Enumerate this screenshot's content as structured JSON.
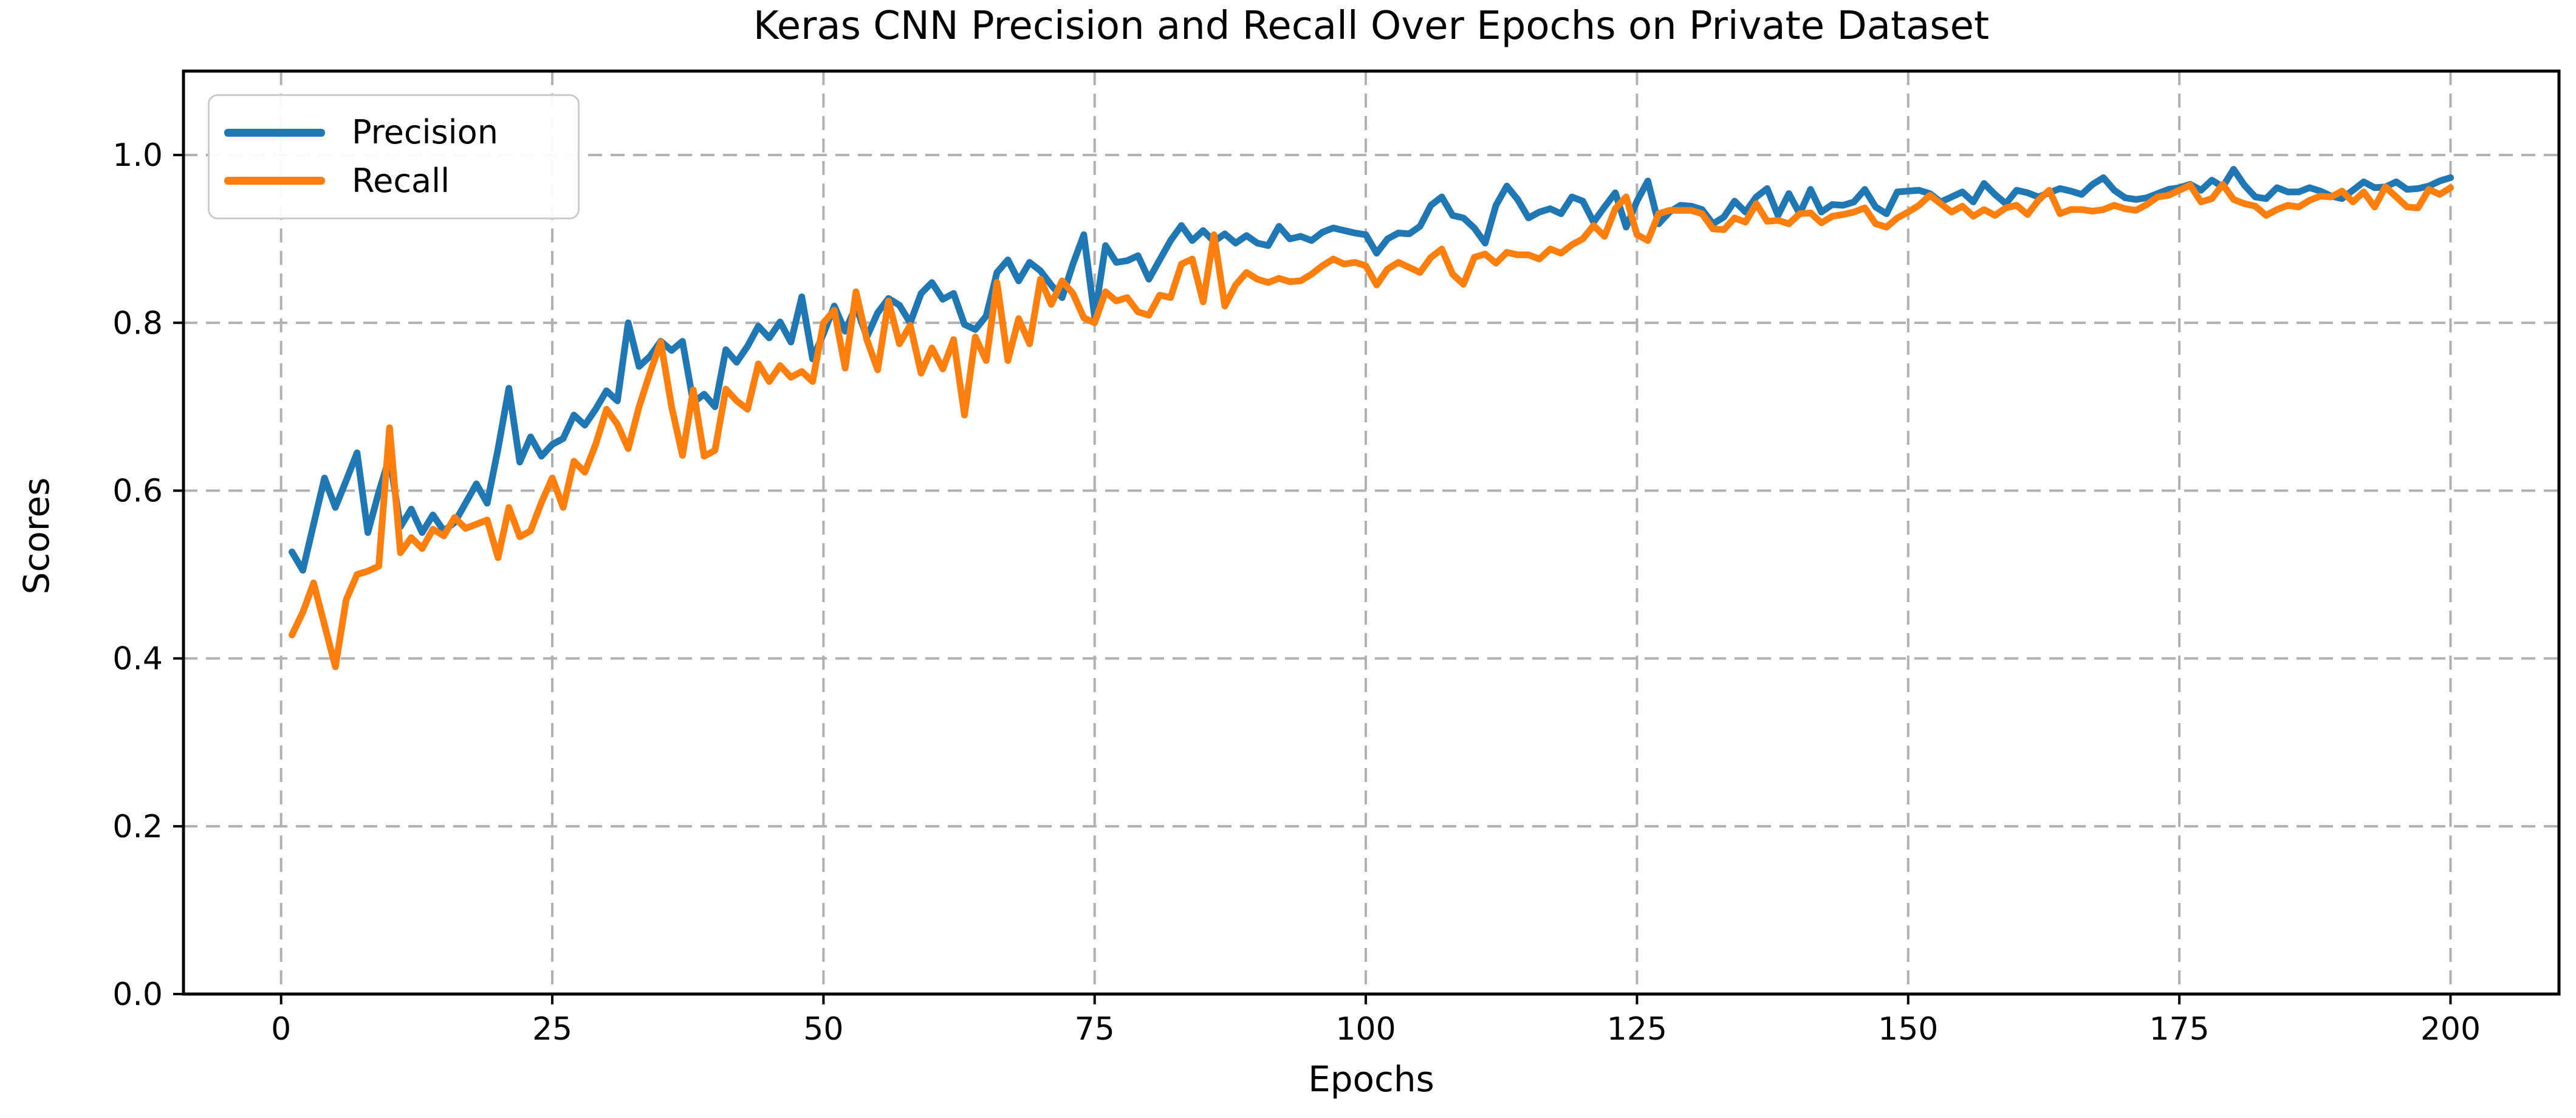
{
  "chart_data": {
    "type": "line",
    "title": "Keras CNN Precision and Recall Over Epochs on Private Dataset",
    "xlabel": "Epochs",
    "ylabel": "Scores",
    "xlim": [
      -9,
      210
    ],
    "ylim": [
      0,
      1.1
    ],
    "x_ticks": [
      0,
      25,
      50,
      75,
      100,
      125,
      150,
      175,
      200
    ],
    "x_tick_labels": [
      "0",
      "25",
      "50",
      "75",
      "100",
      "125",
      "150",
      "175",
      "200"
    ],
    "y_ticks": [
      0.0,
      0.2,
      0.4,
      0.6,
      0.8,
      1.0
    ],
    "y_tick_labels": [
      "0.0",
      "0.2",
      "0.4",
      "0.6",
      "0.8",
      "1.0"
    ],
    "grid": true,
    "grid_style": "dashed",
    "legend_position": "upper left",
    "colors": {
      "precision": "#1f77b4",
      "recall": "#ff7f0e",
      "grid": "#b0b0b0",
      "spine": "#000000"
    },
    "epochs": {
      "from": 1,
      "to": 200,
      "step": 1
    },
    "series": [
      {
        "name": "Precision",
        "color_key": "precision",
        "values": [
          0.527,
          0.505,
          0.56,
          0.615,
          0.58,
          0.612,
          0.645,
          0.55,
          0.598,
          0.64,
          0.557,
          0.578,
          0.55,
          0.571,
          0.552,
          0.562,
          0.585,
          0.608,
          0.585,
          0.65,
          0.722,
          0.634,
          0.664,
          0.641,
          0.655,
          0.662,
          0.69,
          0.678,
          0.697,
          0.719,
          0.707,
          0.8,
          0.748,
          0.76,
          0.778,
          0.767,
          0.778,
          0.705,
          0.715,
          0.7,
          0.768,
          0.753,
          0.772,
          0.796,
          0.782,
          0.801,
          0.777,
          0.831,
          0.757,
          0.787,
          0.82,
          0.79,
          0.82,
          0.783,
          0.812,
          0.829,
          0.821,
          0.8,
          0.835,
          0.848,
          0.828,
          0.835,
          0.798,
          0.792,
          0.808,
          0.86,
          0.875,
          0.85,
          0.872,
          0.862,
          0.845,
          0.83,
          0.87,
          0.905,
          0.807,
          0.892,
          0.872,
          0.874,
          0.88,
          0.852,
          0.875,
          0.898,
          0.916,
          0.898,
          0.91,
          0.897,
          0.906,
          0.895,
          0.904,
          0.895,
          0.892,
          0.915,
          0.9,
          0.903,
          0.898,
          0.908,
          0.913,
          0.91,
          0.907,
          0.905,
          0.883,
          0.9,
          0.907,
          0.906,
          0.915,
          0.94,
          0.95,
          0.928,
          0.925,
          0.913,
          0.895,
          0.94,
          0.963,
          0.947,
          0.925,
          0.932,
          0.936,
          0.93,
          0.95,
          0.945,
          0.92,
          0.938,
          0.955,
          0.914,
          0.945,
          0.969,
          0.918,
          0.932,
          0.94,
          0.939,
          0.935,
          0.918,
          0.926,
          0.945,
          0.932,
          0.95,
          0.96,
          0.928,
          0.954,
          0.93,
          0.959,
          0.932,
          0.941,
          0.94,
          0.944,
          0.959,
          0.938,
          0.93,
          0.956,
          0.957,
          0.958,
          0.954,
          0.944,
          0.95,
          0.956,
          0.944,
          0.966,
          0.953,
          0.942,
          0.958,
          0.955,
          0.95,
          0.955,
          0.96,
          0.957,
          0.953,
          0.965,
          0.973,
          0.958,
          0.949,
          0.947,
          0.949,
          0.954,
          0.959,
          0.961,
          0.965,
          0.958,
          0.97,
          0.962,
          0.983,
          0.964,
          0.95,
          0.948,
          0.961,
          0.956,
          0.956,
          0.961,
          0.957,
          0.951,
          0.948,
          0.958,
          0.968,
          0.961,
          0.962,
          0.968,
          0.959,
          0.96,
          0.963,
          0.969,
          0.973
        ]
      },
      {
        "name": "Recall",
        "color_key": "recall",
        "values": [
          0.428,
          0.455,
          0.49,
          0.44,
          0.39,
          0.47,
          0.5,
          0.504,
          0.51,
          0.675,
          0.526,
          0.544,
          0.531,
          0.554,
          0.546,
          0.568,
          0.555,
          0.56,
          0.565,
          0.52,
          0.58,
          0.545,
          0.552,
          0.586,
          0.615,
          0.58,
          0.635,
          0.622,
          0.655,
          0.697,
          0.679,
          0.65,
          0.7,
          0.74,
          0.777,
          0.7,
          0.642,
          0.72,
          0.641,
          0.648,
          0.721,
          0.707,
          0.697,
          0.751,
          0.73,
          0.749,
          0.735,
          0.742,
          0.73,
          0.8,
          0.815,
          0.746,
          0.837,
          0.78,
          0.744,
          0.826,
          0.775,
          0.797,
          0.74,
          0.77,
          0.745,
          0.78,
          0.69,
          0.783,
          0.755,
          0.848,
          0.755,
          0.805,
          0.775,
          0.852,
          0.822,
          0.85,
          0.835,
          0.806,
          0.8,
          0.837,
          0.826,
          0.83,
          0.813,
          0.809,
          0.833,
          0.83,
          0.87,
          0.876,
          0.825,
          0.905,
          0.82,
          0.845,
          0.86,
          0.852,
          0.848,
          0.853,
          0.849,
          0.85,
          0.858,
          0.868,
          0.876,
          0.87,
          0.872,
          0.868,
          0.845,
          0.864,
          0.872,
          0.866,
          0.86,
          0.878,
          0.888,
          0.858,
          0.846,
          0.878,
          0.882,
          0.871,
          0.884,
          0.881,
          0.881,
          0.876,
          0.888,
          0.883,
          0.893,
          0.9,
          0.916,
          0.903,
          0.936,
          0.95,
          0.905,
          0.898,
          0.93,
          0.934,
          0.934,
          0.934,
          0.93,
          0.912,
          0.911,
          0.925,
          0.92,
          0.942,
          0.921,
          0.922,
          0.918,
          0.93,
          0.931,
          0.919,
          0.927,
          0.929,
          0.932,
          0.937,
          0.918,
          0.914,
          0.925,
          0.932,
          0.94,
          0.952,
          0.942,
          0.932,
          0.939,
          0.927,
          0.935,
          0.928,
          0.937,
          0.94,
          0.929,
          0.946,
          0.958,
          0.93,
          0.935,
          0.935,
          0.933,
          0.935,
          0.94,
          0.936,
          0.934,
          0.941,
          0.95,
          0.952,
          0.958,
          0.964,
          0.944,
          0.948,
          0.965,
          0.947,
          0.942,
          0.939,
          0.928,
          0.935,
          0.94,
          0.938,
          0.946,
          0.951,
          0.95,
          0.957,
          0.944,
          0.956,
          0.938,
          0.962,
          0.95,
          0.938,
          0.937,
          0.959,
          0.953,
          0.961
        ]
      }
    ]
  }
}
